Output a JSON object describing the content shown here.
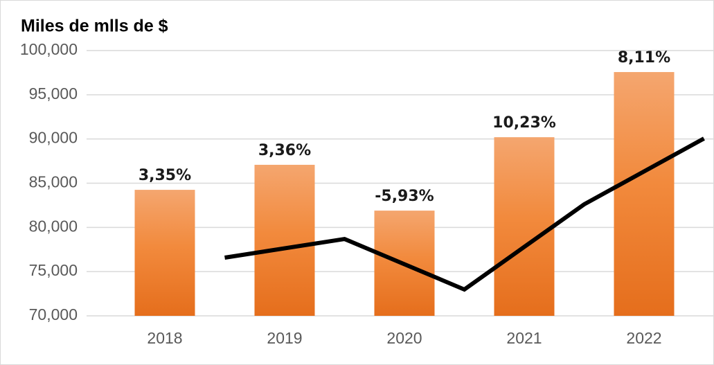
{
  "chart_data": {
    "type": "bar",
    "title": "Miles de mlls de $",
    "categories": [
      "2018",
      "2019",
      "2020",
      "2021",
      "2022"
    ],
    "values": [
      84250,
      87080,
      81900,
      90200,
      97570
    ],
    "growth_labels": [
      "3,35%",
      "3,36%",
      "-5,93%",
      "10,23%",
      "8,11%"
    ],
    "color": "#ee7d2b",
    "line": {
      "color": "#000000",
      "values": [
        76580,
        78690,
        72980,
        82610,
        90050
      ]
    },
    "ylim": [
      70000,
      100000
    ],
    "yticks": [
      {
        "value": 70000,
        "label": "70,000"
      },
      {
        "value": 75000,
        "label": "75,000"
      },
      {
        "value": 80000,
        "label": "80,000"
      },
      {
        "value": 85000,
        "label": "85,000"
      },
      {
        "value": 90000,
        "label": "90,000"
      },
      {
        "value": 95000,
        "label": "95,000"
      },
      {
        "value": 100000,
        "label": "100,000"
      }
    ],
    "grid": true
  }
}
